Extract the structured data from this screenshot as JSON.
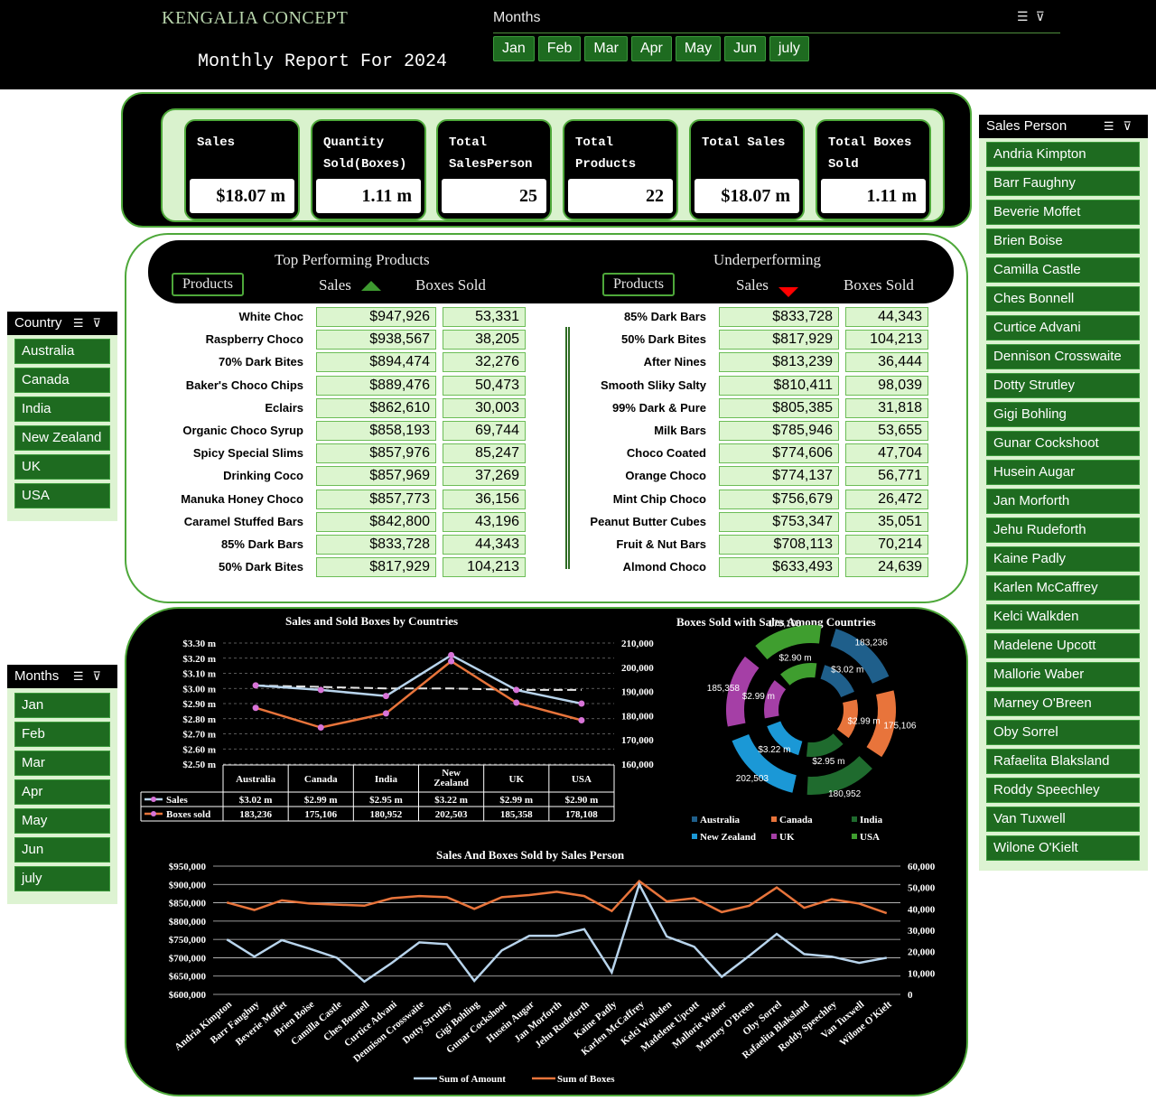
{
  "header": {
    "brand": "KENGALIA CONCEPT",
    "report_title": "Monthly Report For 2024",
    "months_label": "Months",
    "months": [
      "Jan",
      "Feb",
      "Mar",
      "Apr",
      "May",
      "Jun",
      "july"
    ]
  },
  "kpis": [
    {
      "label": "Sales",
      "value": "$18.07 m"
    },
    {
      "label": "Quantity Sold(Boxes)",
      "value": "1.11 m"
    },
    {
      "label": "Total SalesPerson",
      "value": "25"
    },
    {
      "label": "Total Products",
      "value": "22"
    },
    {
      "label": "Total Sales",
      "value": "$18.07 m"
    },
    {
      "label": "Total Boxes Sold",
      "value": "1.11 m"
    }
  ],
  "top_products": {
    "title": "Top Performing Products",
    "products_btn": "Products",
    "sales_label": "Sales",
    "boxes_label": "Boxes Sold",
    "rows": [
      {
        "name": "White Choc",
        "sales": "$947,926",
        "boxes": "53,331"
      },
      {
        "name": "Raspberry Choco",
        "sales": "$938,567",
        "boxes": "38,205"
      },
      {
        "name": "70% Dark Bites",
        "sales": "$894,474",
        "boxes": "32,276"
      },
      {
        "name": "Baker's Choco Chips",
        "sales": "$889,476",
        "boxes": "50,473"
      },
      {
        "name": "Eclairs",
        "sales": "$862,610",
        "boxes": "30,003"
      },
      {
        "name": "Organic Choco Syrup",
        "sales": "$858,193",
        "boxes": "69,744"
      },
      {
        "name": "Spicy Special Slims",
        "sales": "$857,976",
        "boxes": "85,247"
      },
      {
        "name": "Drinking Coco",
        "sales": "$857,969",
        "boxes": "37,269"
      },
      {
        "name": "Manuka Honey Choco",
        "sales": "$857,773",
        "boxes": "36,156"
      },
      {
        "name": "Caramel Stuffed Bars",
        "sales": "$842,800",
        "boxes": "43,196"
      },
      {
        "name": "85% Dark Bars",
        "sales": "$833,728",
        "boxes": "44,343"
      },
      {
        "name": "50% Dark Bites",
        "sales": "$817,929",
        "boxes": "104,213"
      }
    ]
  },
  "under_products": {
    "title": "Underperforming",
    "products_btn": "Products",
    "sales_label": "Sales",
    "boxes_label": "Boxes Sold",
    "rows": [
      {
        "name": "85% Dark Bars",
        "sales": "$833,728",
        "boxes": "44,343"
      },
      {
        "name": "50% Dark Bites",
        "sales": "$817,929",
        "boxes": "104,213"
      },
      {
        "name": "After Nines",
        "sales": "$813,239",
        "boxes": "36,444"
      },
      {
        "name": "Smooth Sliky Salty",
        "sales": "$810,411",
        "boxes": "98,039"
      },
      {
        "name": "99% Dark & Pure",
        "sales": "$805,385",
        "boxes": "31,818"
      },
      {
        "name": "Milk Bars",
        "sales": "$785,946",
        "boxes": "53,655"
      },
      {
        "name": "Choco Coated",
        "sales": "$774,606",
        "boxes": "47,704"
      },
      {
        "name": "Orange Choco",
        "sales": "$774,137",
        "boxes": "56,771"
      },
      {
        "name": "Mint Chip Choco",
        "sales": "$756,679",
        "boxes": "26,472"
      },
      {
        "name": "Peanut Butter Cubes",
        "sales": "$753,347",
        "boxes": "35,051"
      },
      {
        "name": "Fruit & Nut Bars",
        "sales": "$708,113",
        "boxes": "70,214"
      },
      {
        "name": "Almond Choco",
        "sales": "$633,493",
        "boxes": "24,639"
      }
    ]
  },
  "country_slicer": {
    "title": "Country",
    "items": [
      "Australia",
      "Canada",
      "India",
      "New Zealand",
      "UK",
      "USA"
    ]
  },
  "months_slicer": {
    "title": "Months",
    "items": [
      "Jan",
      "Feb",
      "Mar",
      "Apr",
      "May",
      "Jun",
      "july"
    ]
  },
  "salesperson_slicer": {
    "title": "Sales Person",
    "items": [
      "Andria Kimpton",
      "Barr Faughny",
      "Beverie Moffet",
      "Brien Boise",
      "Camilla Castle",
      "Ches Bonnell",
      "Curtice Advani",
      "Dennison Crosswaite",
      "Dotty Strutley",
      "Gigi Bohling",
      "Gunar Cockshoot",
      "Husein Augar",
      "Jan Morforth",
      "Jehu Rudeforth",
      "Kaine Padly",
      "Karlen McCaffrey",
      "Kelci Walkden",
      "Madelene Upcott",
      "Mallorie Waber",
      "Marney O'Breen",
      "Oby Sorrel",
      "Rafaelita Blaksland",
      "Roddy Speechley",
      "Van Tuxwell",
      "Wilone O'Kielt"
    ]
  },
  "colors": {
    "accent_green": "#1e6b20",
    "border_green": "#4ea83a",
    "light_green": "#dcf5cf",
    "sales_line": "#b8d4ec",
    "boxes_line": "#e8743b",
    "marker": "#d874d8"
  },
  "chart_data": [
    {
      "type": "line",
      "title": "Sales and Sold Boxes by Countries",
      "categories": [
        "Australia",
        "Canada",
        "India",
        "New Zealand",
        "UK",
        "USA"
      ],
      "category_labels": [
        "$3.02 m",
        "$2.99 m",
        "$2.95 m",
        "$3.22 m",
        "$2.99 m",
        "$2.90 m"
      ],
      "y_ticks": [
        "$3.30 m",
        "$3.20 m",
        "$3.10 m",
        "$3.00 m",
        "$2.90 m",
        "$2.80 m",
        "$2.70 m",
        "$2.60 m",
        "$2.50 m"
      ],
      "y2_ticks": [
        "210,000",
        "200,000",
        "190,000",
        "180,000",
        "170,000",
        "160,000"
      ],
      "ylim": [
        2.5,
        3.3
      ],
      "y2lim": [
        160000,
        210000
      ],
      "table_rows": [
        "Sales",
        "Boxes sold"
      ],
      "series": [
        {
          "name": "Sales",
          "axis": "left",
          "values": [
            3.02,
            2.99,
            2.95,
            3.22,
            2.99,
            2.9
          ],
          "labels": [
            "$3.02 m",
            "$2.99 m",
            "$2.95 m",
            "$3.22 m",
            "$2.99 m",
            "$2.90 m"
          ]
        },
        {
          "name": "Boxes sold",
          "axis": "right",
          "values": [
            183236,
            175106,
            180952,
            202503,
            185358,
            178108
          ],
          "labels": [
            "183,236",
            "175,106",
            "180,952",
            "202,503",
            "185,358",
            "178,108"
          ]
        }
      ],
      "trendline": [
        3.02,
        3.01,
        3.0,
        3.0,
        2.99,
        2.99
      ],
      "grid": true
    },
    {
      "type": "pie",
      "title": "Boxes Sold with Sales Among Countries",
      "categories": [
        "Australia",
        "Canada",
        "India",
        "New Zealand",
        "UK",
        "USA"
      ],
      "colors": [
        "#1f5f8b",
        "#e8743b",
        "#1f6b2e",
        "#1b98d6",
        "#a53fa6",
        "#3f9e2f"
      ],
      "outer_ring": {
        "values": [
          183236,
          175106,
          180952,
          202503,
          185358,
          178108
        ],
        "labels": [
          "183,236",
          "175,106",
          "180,952",
          "202,503",
          "185,358",
          "178,108"
        ]
      },
      "inner_ring": {
        "values": [
          3.02,
          2.99,
          2.95,
          3.22,
          2.99,
          2.9
        ],
        "labels": [
          "$3.02 m",
          "$2.99 m",
          "$2.95 m",
          "$3.22 m",
          "$2.99 m",
          "$2.90 m"
        ]
      },
      "legend": "bottom"
    },
    {
      "type": "line",
      "title": "Sales And Boxes Sold by Sales Person",
      "categories": [
        "Andria Kimpton",
        "Barr Faughny",
        "Beverie Moffet",
        "Brien Boise",
        "Camilla Castle",
        "Ches Bonnell",
        "Curtice Advani",
        "Dennison Crosswaite",
        "Dotty Strutley",
        "Gigi Bohling",
        "Gunar Cockshoot",
        "Husein Augar",
        "Jan Morforth",
        "Jehu Rudeforth",
        "Kaine Padly",
        "Karlen McCaffrey",
        "Kelci Walkden",
        "Madelene Upcott",
        "Mallorie Waber",
        "Marney O'Breen",
        "Oby Sorrel",
        "Rafaelita Blaksland",
        "Roddy Speechley",
        "Van Tuxwell",
        "Wilone O'Kielt"
      ],
      "y_ticks": [
        "$950,000",
        "$900,000",
        "$850,000",
        "$800,000",
        "$750,000",
        "$700,000",
        "$650,000",
        "$600,000"
      ],
      "y2_ticks": [
        "60,000",
        "50,000",
        "40,000",
        "30,000",
        "20,000",
        "10,000",
        "0"
      ],
      "ylim": [
        600000,
        950000
      ],
      "y2lim": [
        0,
        60000
      ],
      "series": [
        {
          "name": "Sum of Amount",
          "axis": "left",
          "values": [
            750000,
            703000,
            748000,
            725000,
            700000,
            635000,
            686000,
            742000,
            737000,
            637000,
            720000,
            760000,
            760000,
            778000,
            660000,
            900000,
            758000,
            730000,
            648000,
            705000,
            765000,
            710000,
            703000,
            686000,
            700000
          ]
        },
        {
          "name": "Sum of Boxes",
          "axis": "right",
          "values": [
            43000,
            39500,
            44000,
            42500,
            42000,
            41500,
            45000,
            46000,
            45500,
            40000,
            45500,
            46500,
            48000,
            46000,
            39000,
            53000,
            43500,
            45000,
            38500,
            41500,
            50000,
            40500,
            44500,
            42500,
            38000
          ]
        }
      ],
      "legend": "bottom",
      "grid": true
    }
  ]
}
